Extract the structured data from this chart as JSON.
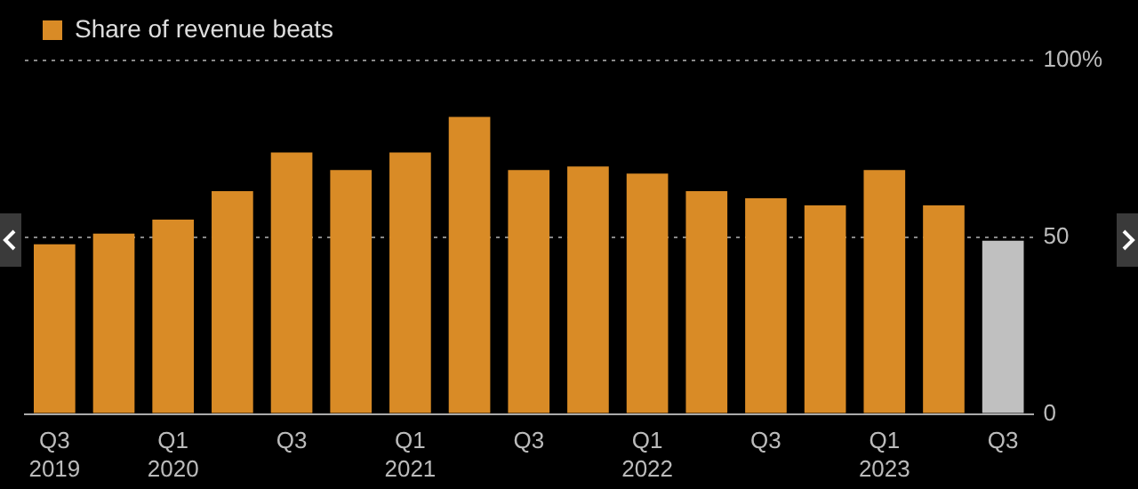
{
  "chart_data": {
    "type": "bar",
    "categories": [
      "Q3\n2019",
      null,
      "Q1\n2020",
      null,
      "Q3",
      null,
      "Q1\n2021",
      null,
      "Q3",
      null,
      "Q1\n2022",
      null,
      "Q3",
      null,
      "Q1\n2023",
      null,
      "Q3"
    ],
    "series": [
      {
        "name": "Share of revenue beats",
        "color": "#d98b26",
        "colors": [
          "#d98b26",
          "#d98b26",
          "#d98b26",
          "#d98b26",
          "#d98b26",
          "#d98b26",
          "#d98b26",
          "#d98b26",
          "#d98b26",
          "#d98b26",
          "#d98b26",
          "#d98b26",
          "#d98b26",
          "#d98b26",
          "#d98b26",
          "#d98b26",
          "#c0c0c0"
        ],
        "values": [
          48,
          51,
          55,
          63,
          74,
          69,
          74,
          84,
          69,
          70,
          68,
          63,
          61,
          59,
          69,
          59,
          49
        ]
      }
    ],
    "ylim": [
      0,
      100
    ],
    "yticks": [
      0,
      50,
      {
        "value": 100,
        "label": "100%"
      }
    ],
    "grid": "y",
    "legend": "top left"
  }
}
